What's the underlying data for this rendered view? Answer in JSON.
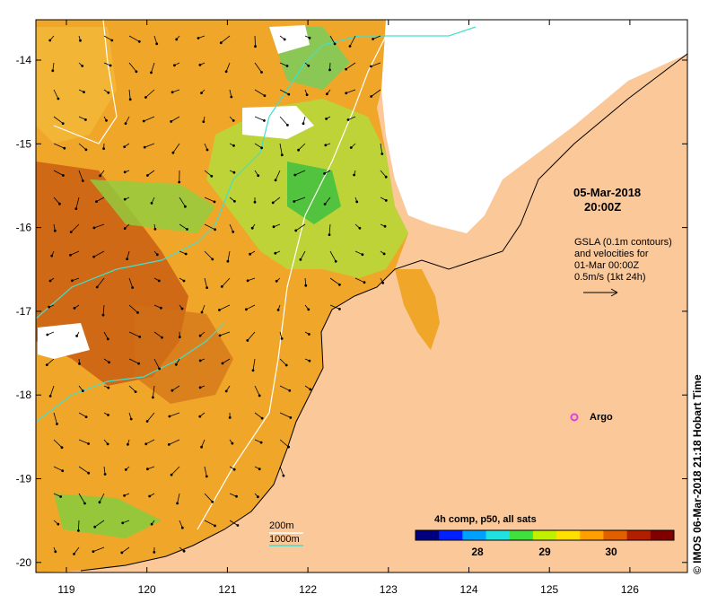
{
  "map": {
    "lat_ticks": [
      "-14",
      "-15",
      "-16",
      "-17",
      "-18",
      "-19",
      "-20"
    ],
    "lon_ticks": [
      "119",
      "120",
      "121",
      "122",
      "123",
      "124",
      "125",
      "126"
    ],
    "datetime_line1": "05-Mar-2018",
    "datetime_line2": "20:00Z",
    "gsla_note": [
      "GSLA (0.1m contours)",
      "and velocities for",
      "01-Mar 00:00Z",
      "0.5m/s (1kt 24h)"
    ],
    "argo_label": "Argo",
    "argo_color": "#e040e0",
    "legend_200": "200m",
    "legend_1000": "1000m",
    "legend_200_color": "#ffffff",
    "legend_1000_color": "#40e0d0",
    "land_color": "#fbc89a",
    "colorbar": {
      "title": "4h comp, p50, all sats",
      "tick_labels": [
        "28",
        "29",
        "30"
      ],
      "colors": [
        "#00007f",
        "#0020ff",
        "#00a0ff",
        "#20e0e0",
        "#40e040",
        "#c0f000",
        "#ffe000",
        "#ffa000",
        "#e06000",
        "#b02000",
        "#800000"
      ]
    },
    "side_label": "© IMOS 06-Mar-2018 21:18 Hobart Time"
  }
}
